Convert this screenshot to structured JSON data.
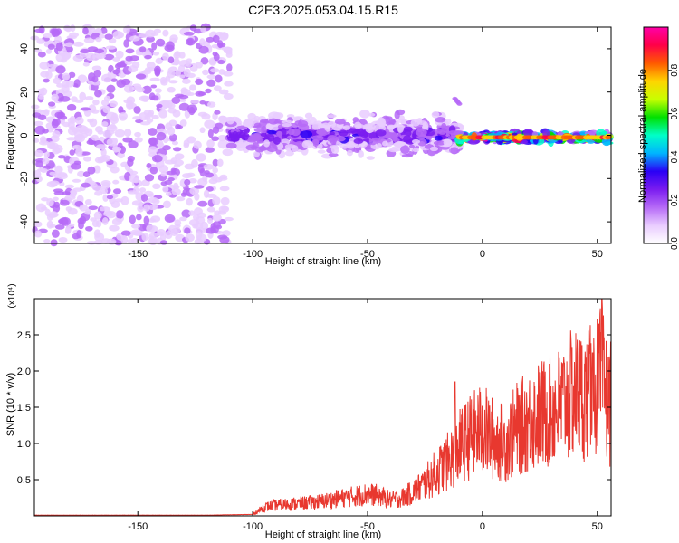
{
  "title": "C2E3.2025.053.04.15.R15",
  "colors": {
    "snr_line": "#e8382f",
    "colormap": [
      "#ffffff",
      "#e9ccff",
      "#b66af7",
      "#7a1cf0",
      "#2a00f5",
      "#00b4ff",
      "#00ffc8",
      "#00e000",
      "#c8ff00",
      "#ffd400",
      "#ff5a00",
      "#ff0048",
      "#ff00a8"
    ]
  },
  "chart_data": [
    {
      "type": "heatmap",
      "xlabel": "Height of straight line (km)",
      "ylabel": "Frequency (Hz)",
      "xlim": [
        -195,
        56
      ],
      "ylim": [
        -50,
        50
      ],
      "x_ticks": [
        -150,
        -100,
        -50,
        0,
        50
      ],
      "y_ticks": [
        -40,
        -20,
        0,
        20,
        40
      ],
      "colorbar": {
        "label": "Normalized spectral amplitude",
        "range": [
          0.0,
          1.0
        ],
        "ticks": [
          "0.0",
          "0.2",
          "0.4",
          "0.6",
          "0.8"
        ]
      },
      "regions": [
        {
          "x_range": [
            -195,
            -110
          ],
          "freq_range": [
            -50,
            50
          ],
          "amplitude": 0.08,
          "description_level": "scattered noise"
        },
        {
          "x_range": [
            -110,
            -10
          ],
          "center_freq": 0,
          "freq_spread": 8,
          "amplitude": 0.25
        },
        {
          "x_range": [
            -10,
            56
          ],
          "center_freq": -1,
          "freq_spread": 2,
          "amplitude": 0.85
        }
      ],
      "features": [
        {
          "x": -12,
          "freq": 17,
          "amplitude": 0.15
        }
      ]
    },
    {
      "type": "line",
      "xlabel": "Height of straight line (km)",
      "ylabel": "SNR (10 * v/v)",
      "y_multiplier": "(x10⁴)",
      "xlim": [
        -195,
        56
      ],
      "ylim": [
        0,
        3.0
      ],
      "x_ticks": [
        -150,
        -100,
        -50,
        0,
        50
      ],
      "y_ticks": [
        "0.5",
        "1.0",
        "1.5",
        "2.0",
        "2.5"
      ],
      "series": [
        {
          "x": [
            -195,
            -150,
            -120,
            -100,
            -95,
            -90,
            -80,
            -70,
            -60,
            -50,
            -45,
            -40,
            -35,
            -30,
            -25,
            -20,
            -15,
            -12,
            -10,
            -5,
            0,
            5,
            10,
            15,
            20,
            25,
            30,
            35,
            40,
            45,
            50,
            52,
            55,
            56
          ],
          "y": [
            0.01,
            0.01,
            0.01,
            0.02,
            0.12,
            0.15,
            0.17,
            0.2,
            0.25,
            0.3,
            0.28,
            0.22,
            0.25,
            0.33,
            0.45,
            0.6,
            0.75,
            0.85,
            0.95,
            1.1,
            1.2,
            1.05,
            1.0,
            1.2,
            1.3,
            1.4,
            1.45,
            1.55,
            1.7,
            1.65,
            1.8,
            1.9,
            1.5,
            1.5
          ],
          "spikes": [
            {
              "x": -12,
              "y": 1.85
            },
            {
              "x": 48,
              "y": 2.25
            },
            {
              "x": 52,
              "y": 3.0
            },
            {
              "x": 56,
              "y": 2.4
            }
          ]
        }
      ]
    }
  ]
}
